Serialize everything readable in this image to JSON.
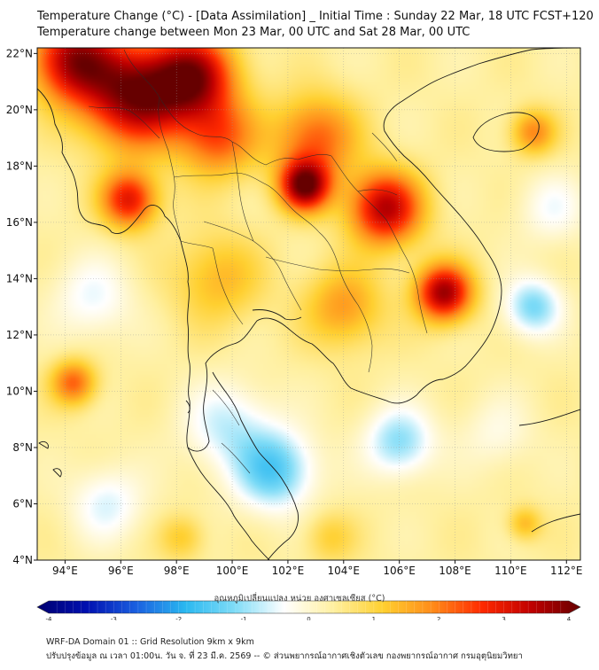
{
  "title": {
    "line1": "Temperature Change (°C) - [Data Assimilation] _ Initial Time : Sunday 22 Mar, 18 UTC FCST+120",
    "line2": "Temperature change between Mon 23 Mar, 00 UTC and Sat 28 Mar, 00 UTC"
  },
  "map": {
    "lon_range": [
      93,
      112.5
    ],
    "lat_range": [
      4,
      22.2
    ],
    "lon_ticks": [
      94,
      96,
      98,
      100,
      102,
      104,
      106,
      108,
      110,
      112
    ],
    "lon_tick_labels": [
      "94°E",
      "96°E",
      "98°E",
      "100°E",
      "102°E",
      "104°E",
      "106°E",
      "108°E",
      "110°E",
      "112°E"
    ],
    "lat_ticks": [
      4,
      6,
      8,
      10,
      12,
      14,
      16,
      18,
      20,
      22
    ],
    "lat_tick_labels": [
      "4°N",
      "6°N",
      "8°N",
      "10°N",
      "12°N",
      "14°N",
      "16°N",
      "18°N",
      "20°N",
      "22°N"
    ],
    "field_blobs": [
      {
        "lon": 96.5,
        "lat": 20.5,
        "value": 3.3,
        "spread": 1.8
      },
      {
        "lon": 94.3,
        "lat": 21.8,
        "value": 3.0,
        "spread": 1.5
      },
      {
        "lon": 98.6,
        "lat": 21.2,
        "value": 3.0,
        "spread": 1.5
      },
      {
        "lon": 99.5,
        "lat": 19.0,
        "value": 1.8,
        "spread": 1.4
      },
      {
        "lon": 96.3,
        "lat": 16.8,
        "value": 2.5,
        "spread": 1.0
      },
      {
        "lon": 102.6,
        "lat": 17.3,
        "value": 3.4,
        "spread": 0.9
      },
      {
        "lon": 105.5,
        "lat": 16.5,
        "value": 3.0,
        "spread": 1.3
      },
      {
        "lon": 107.6,
        "lat": 13.5,
        "value": 3.2,
        "spread": 1.0
      },
      {
        "lon": 103.0,
        "lat": 19.0,
        "value": 1.8,
        "spread": 1.5
      },
      {
        "lon": 104.0,
        "lat": 13.0,
        "value": 1.3,
        "spread": 1.4
      },
      {
        "lon": 99.5,
        "lat": 14.0,
        "value": 1.0,
        "spread": 1.6
      },
      {
        "lon": 94.3,
        "lat": 10.3,
        "value": 1.8,
        "spread": 0.8
      },
      {
        "lon": 110.8,
        "lat": 19.2,
        "value": 1.5,
        "spread": 0.8
      },
      {
        "lon": 95.0,
        "lat": 13.3,
        "value": -0.8,
        "spread": 1.4
      },
      {
        "lon": 101.5,
        "lat": 7.2,
        "value": -1.8,
        "spread": 1.4
      },
      {
        "lon": 99.8,
        "lat": 8.8,
        "value": -1.0,
        "spread": 1.5
      },
      {
        "lon": 106.0,
        "lat": 8.2,
        "value": -1.4,
        "spread": 1.2
      },
      {
        "lon": 110.8,
        "lat": 13.0,
        "value": -1.5,
        "spread": 1.0
      },
      {
        "lon": 111.5,
        "lat": 16.5,
        "value": -0.7,
        "spread": 1.2
      },
      {
        "lon": 95.5,
        "lat": 6.0,
        "value": -0.9,
        "spread": 1.3
      },
      {
        "lon": 109.5,
        "lat": 8.5,
        "value": -0.5,
        "spread": 1.3
      },
      {
        "lon": 110.5,
        "lat": 5.3,
        "value": 1.0,
        "spread": 0.6
      },
      {
        "lon": 98.2,
        "lat": 4.8,
        "value": 0.8,
        "spread": 0.8
      },
      {
        "lon": 103.5,
        "lat": 4.8,
        "value": 0.7,
        "spread": 0.9
      }
    ]
  },
  "colorbar": {
    "label": "อุณหภูมิเปลี่ยนแปลง หน่วย องศาเซลเซียส (°C)",
    "ticks": [
      -4,
      -3,
      -2,
      -1,
      0,
      1,
      2,
      3,
      4
    ],
    "tick_labels": [
      "-4",
      "-3",
      "-2",
      "-1",
      "0",
      "1",
      "2",
      "3",
      "4"
    ],
    "stops": [
      "#000070",
      "#0010b0",
      "#1a5fe0",
      "#2ab8f0",
      "#7fdcf7",
      "#ffffff",
      "#fff0a0",
      "#ffd030",
      "#ff8c1a",
      "#ff2a00",
      "#c00000",
      "#660000"
    ]
  },
  "footer": {
    "line1": "WRF-DA Domain 01 :: Grid Resolution 9km x 9km",
    "line2": "ปรับปรุงข้อมูล ณ เวลา 01:00น. วัน จ. ที่ 23 มี.ค. 2569 -- © ส่วนพยากรณ์อากาศเชิงตัวเลข กองพยากรณ์อากาศ กรมอุตุนิยมวิทยา"
  }
}
